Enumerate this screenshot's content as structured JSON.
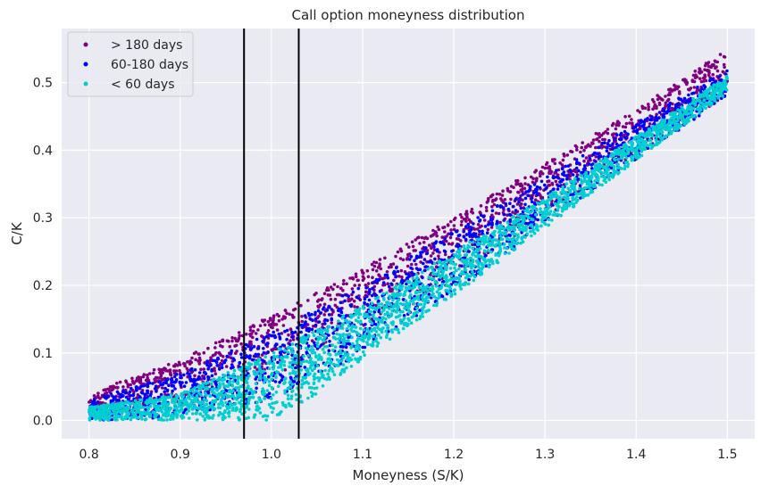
{
  "chart_data": {
    "type": "scatter",
    "title": "Call option moneyness distribution",
    "xlabel": "Moneyness (S/K)",
    "ylabel": "C/K",
    "xlim": [
      0.77,
      1.53
    ],
    "ylim": [
      -0.027,
      0.58
    ],
    "x_ticks": [
      "0.8",
      "0.9",
      "1.0",
      "1.1",
      "1.2",
      "1.3",
      "1.4",
      "1.5"
    ],
    "y_ticks": [
      "0.0",
      "0.1",
      "0.2",
      "0.3",
      "0.4",
      "0.5"
    ],
    "grid": true,
    "legend_position": "top-left",
    "vlines": [
      0.97,
      1.03
    ],
    "series": [
      {
        "name": "> 180 days",
        "color": "#800080",
        "x_range": [
          0.8,
          1.5
        ],
        "band_lower": [
          [
            0.8,
            0.005
          ],
          [
            0.9,
            0.02
          ],
          [
            1.0,
            0.06
          ],
          [
            1.1,
            0.13
          ],
          [
            1.2,
            0.21
          ],
          [
            1.3,
            0.3
          ],
          [
            1.4,
            0.39
          ],
          [
            1.5,
            0.48
          ]
        ],
        "band_upper": [
          [
            0.8,
            0.04
          ],
          [
            0.9,
            0.09
          ],
          [
            1.0,
            0.155
          ],
          [
            1.1,
            0.225
          ],
          [
            1.2,
            0.3
          ],
          [
            1.3,
            0.38
          ],
          [
            1.4,
            0.46
          ],
          [
            1.5,
            0.55
          ]
        ]
      },
      {
        "name": "60-180 days",
        "color": "#0000ff",
        "x_range": [
          0.8,
          1.5
        ],
        "band_lower": [
          [
            0.8,
            0.0
          ],
          [
            0.9,
            0.005
          ],
          [
            1.0,
            0.03
          ],
          [
            1.1,
            0.1
          ],
          [
            1.2,
            0.19
          ],
          [
            1.3,
            0.29
          ],
          [
            1.4,
            0.385
          ],
          [
            1.5,
            0.48
          ]
        ],
        "band_upper": [
          [
            0.8,
            0.03
          ],
          [
            0.9,
            0.07
          ],
          [
            1.0,
            0.13
          ],
          [
            1.1,
            0.2
          ],
          [
            1.2,
            0.28
          ],
          [
            1.3,
            0.36
          ],
          [
            1.4,
            0.44
          ],
          [
            1.5,
            0.52
          ]
        ]
      },
      {
        "name": "< 60 days",
        "color": "#00ced1",
        "x_range": [
          0.8,
          1.5
        ],
        "band_lower": [
          [
            0.8,
            0.0
          ],
          [
            0.9,
            0.0
          ],
          [
            1.0,
            0.0
          ],
          [
            1.05,
            0.04
          ],
          [
            1.1,
            0.09
          ],
          [
            1.2,
            0.185
          ],
          [
            1.3,
            0.285
          ],
          [
            1.4,
            0.385
          ],
          [
            1.5,
            0.485
          ]
        ],
        "band_upper": [
          [
            0.8,
            0.02
          ],
          [
            0.9,
            0.04
          ],
          [
            1.0,
            0.1
          ],
          [
            1.1,
            0.17
          ],
          [
            1.2,
            0.25
          ],
          [
            1.3,
            0.33
          ],
          [
            1.4,
            0.42
          ],
          [
            1.5,
            0.51
          ]
        ]
      }
    ]
  }
}
